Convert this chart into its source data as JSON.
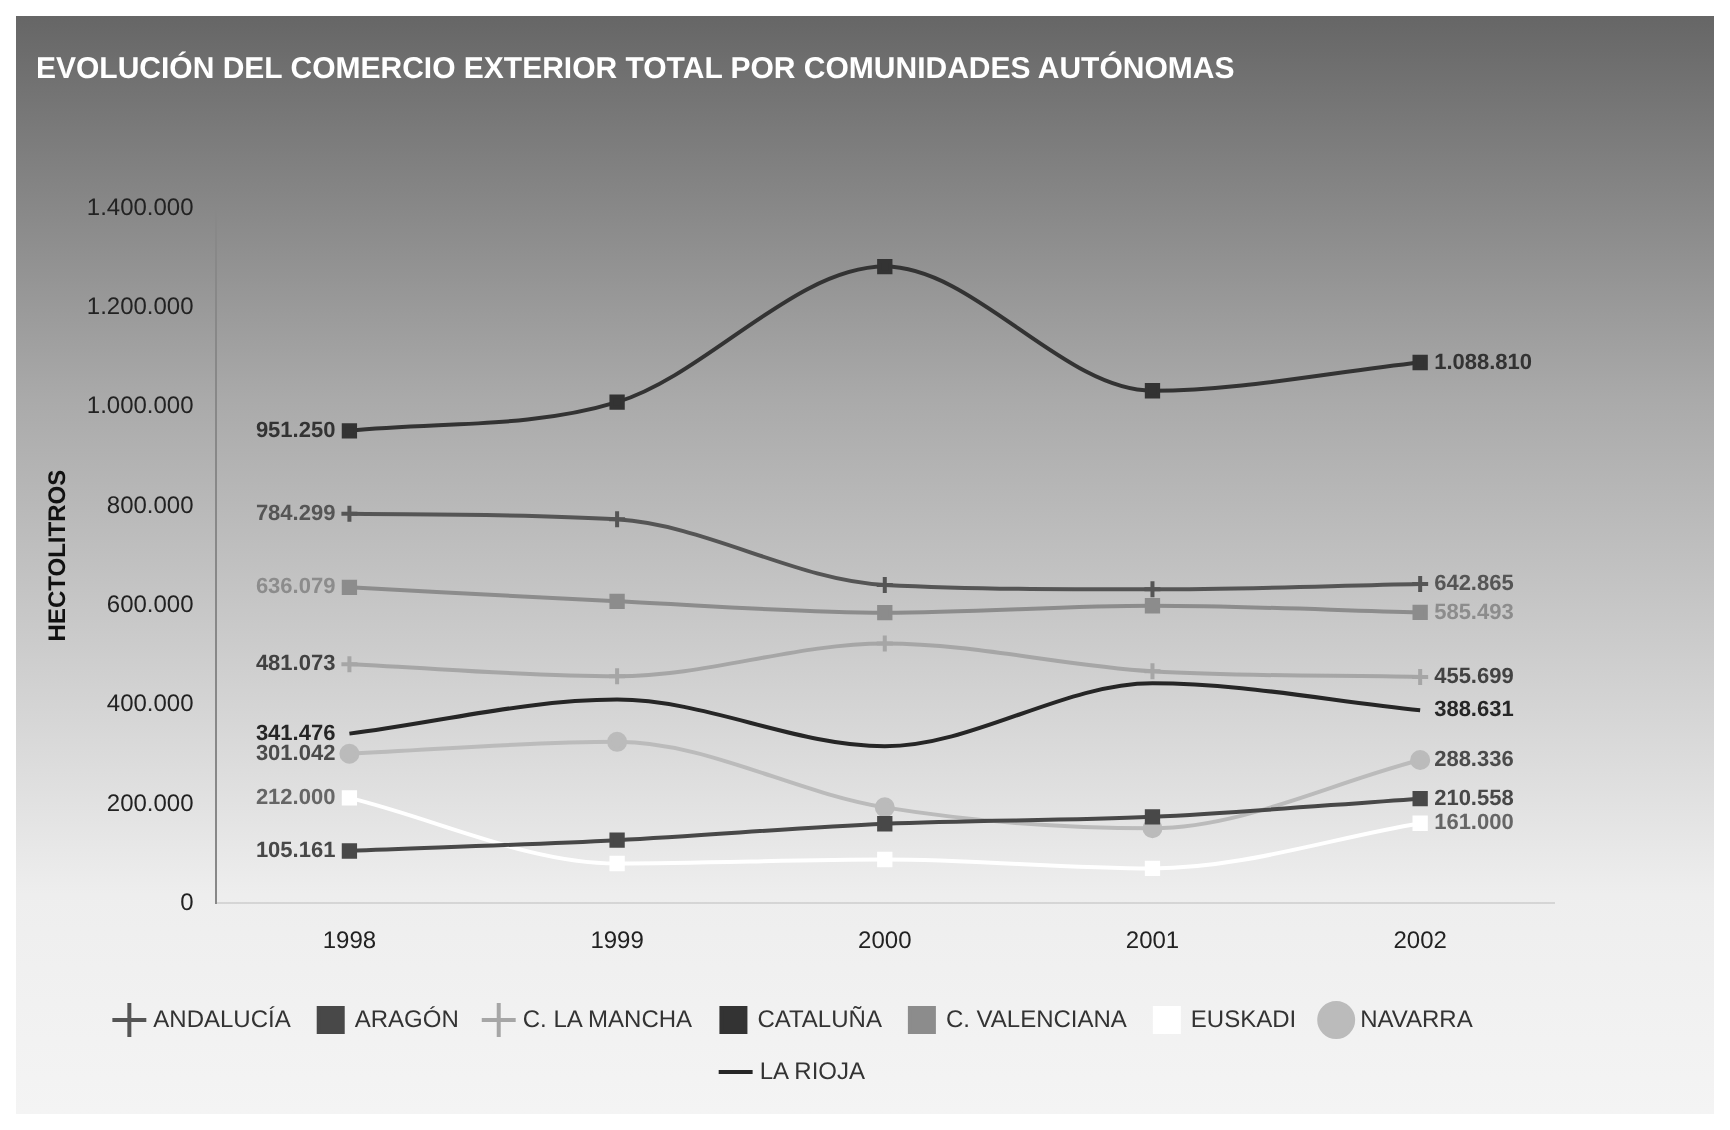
{
  "chart_data": {
    "type": "line",
    "title": "EVOLUCIÓN DEL COMERCIO EXTERIOR TOTAL POR COMUNIDADES AUTÓNOMAS",
    "ylabel": "HECTOLITROS",
    "categories": [
      "1998",
      "1999",
      "2000",
      "2001",
      "2002"
    ],
    "ylim": [
      0,
      1400000
    ],
    "yticks": [
      {
        "value": 0,
        "label": "0"
      },
      {
        "value": 200000,
        "label": "200.000"
      },
      {
        "value": 400000,
        "label": "400.000"
      },
      {
        "value": 600000,
        "label": "600.000"
      },
      {
        "value": 800000,
        "label": "800.000"
      },
      {
        "value": 1000000,
        "label": "1.000.000"
      },
      {
        "value": 1200000,
        "label": "1.200.000"
      },
      {
        "value": 1400000,
        "label": "1.400.000"
      }
    ],
    "grid": false,
    "legend": "bottom",
    "series": [
      {
        "name": "ANDALUCÍA",
        "color": "#555555",
        "marker": "cross",
        "values": [
          784299,
          773000,
          641000,
          632000,
          642865
        ],
        "value_labels": [
          "784.299",
          null,
          null,
          null,
          "642.865"
        ]
      },
      {
        "name": "ARAGÓN",
        "color": "#484848",
        "marker": "square",
        "values": [
          105161,
          127000,
          160000,
          174000,
          210558
        ],
        "value_labels": [
          "105.161",
          null,
          null,
          null,
          "210.558"
        ]
      },
      {
        "name": "C. LA MANCHA",
        "color": "#a6a6a6",
        "marker": "cross",
        "values": [
          481073,
          457000,
          523000,
          467000,
          455699
        ],
        "value_labels": [
          "481.073",
          null,
          null,
          null,
          "455.699"
        ]
      },
      {
        "name": "CATALUÑA",
        "color": "#333333",
        "marker": "square",
        "values": [
          951250,
          1009000,
          1282000,
          1032000,
          1088810
        ],
        "value_labels": [
          "951.250",
          null,
          null,
          null,
          "1.088.810"
        ]
      },
      {
        "name": "C. VALENCIANA",
        "color": "#8c8c8c",
        "marker": "square",
        "values": [
          636079,
          608000,
          585000,
          599000,
          585493
        ],
        "value_labels": [
          "636.079",
          null,
          null,
          null,
          "585.493"
        ]
      },
      {
        "name": "EUSKADI",
        "color": "#ffffff",
        "marker": "square",
        "values": [
          212000,
          80000,
          88000,
          70000,
          161000
        ],
        "value_labels": [
          "212.000",
          null,
          null,
          null,
          "161.000"
        ]
      },
      {
        "name": "NAVARRA",
        "color": "#bbbbbb",
        "marker": "circle",
        "values": [
          301042,
          325000,
          193000,
          151000,
          288336
        ],
        "value_labels": [
          "301.042",
          null,
          null,
          null,
          "288.336"
        ]
      },
      {
        "name": "LA RIOJA",
        "color": "#262626",
        "marker": "none",
        "values": [
          341476,
          410000,
          316000,
          443000,
          388631
        ],
        "value_labels": [
          "341.476",
          null,
          null,
          null,
          "388.631"
        ]
      }
    ]
  }
}
